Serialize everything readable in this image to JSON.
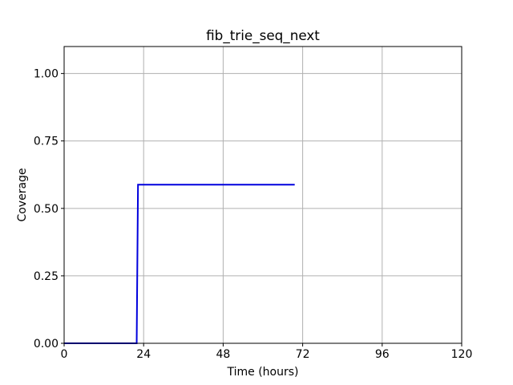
{
  "chart_data": {
    "type": "line",
    "title": "fib_trie_seq_next",
    "xlabel": "Time (hours)",
    "ylabel": "Coverage",
    "xlim": [
      0,
      120
    ],
    "ylim": [
      0,
      1.1
    ],
    "xticks": [
      0,
      24,
      48,
      72,
      96,
      120
    ],
    "xtick_labels": [
      "0",
      "24",
      "48",
      "72",
      "96",
      "120"
    ],
    "yticks": [
      0,
      0.25,
      0.5,
      0.75,
      1.0
    ],
    "ytick_labels": [
      "0.00",
      "0.25",
      "0.50",
      "0.75",
      "1.00"
    ],
    "grid": true,
    "series": [
      {
        "color": "#0000dd",
        "x": [
          0,
          21.9,
          22.3,
          69.6
        ],
        "y": [
          0,
          0,
          0.588,
          0.588
        ]
      }
    ]
  }
}
